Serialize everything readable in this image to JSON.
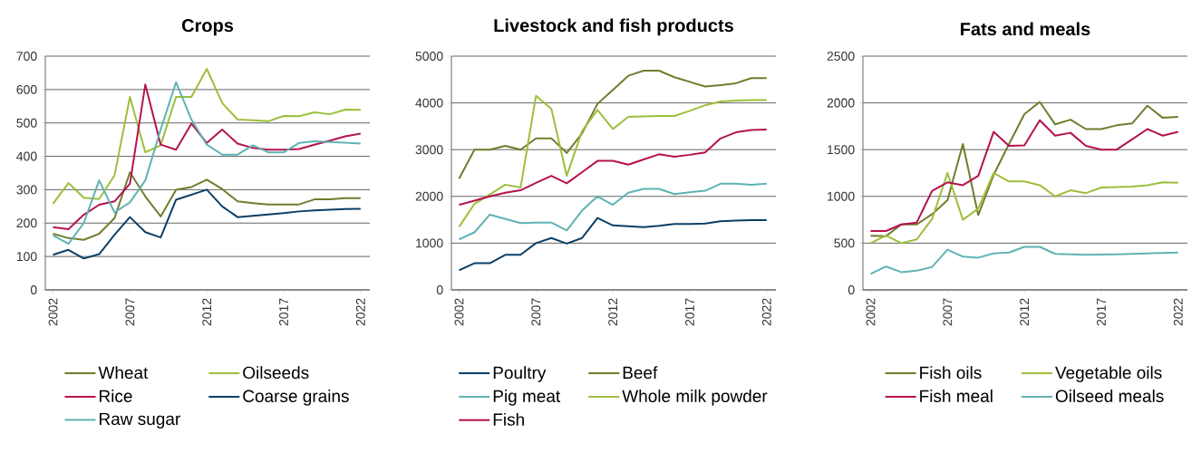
{
  "chart_data": [
    {
      "type": "line",
      "title": "Crops",
      "x": [
        2002,
        2003,
        2004,
        2005,
        2006,
        2007,
        2008,
        2009,
        2010,
        2011,
        2012,
        2013,
        2014,
        2015,
        2016,
        2017,
        2018,
        2019,
        2020,
        2021,
        2022
      ],
      "xlim": [
        2001.5,
        2022.6
      ],
      "xticks": [
        2002,
        2007,
        2012,
        2017,
        2022
      ],
      "ylim": [
        0,
        700
      ],
      "yticks": [
        0,
        100,
        200,
        300,
        400,
        500,
        600,
        700
      ],
      "grid": "y",
      "legend": "bottom",
      "series": [
        {
          "name": "Wheat",
          "color": "#6f7d2c",
          "values": [
            168,
            155,
            150,
            168,
            215,
            352,
            280,
            220,
            300,
            308,
            330,
            302,
            265,
            260,
            256,
            256,
            256,
            271,
            271,
            275,
            275
          ]
        },
        {
          "name": "Oilseeds",
          "color": "#9dbf3a",
          "values": [
            258,
            320,
            276,
            272,
            343,
            578,
            412,
            433,
            578,
            578,
            662,
            560,
            510,
            508,
            505,
            521,
            520,
            532,
            526,
            540,
            539
          ]
        },
        {
          "name": "Rice",
          "color": "#b5124f",
          "values": [
            188,
            182,
            225,
            255,
            265,
            318,
            615,
            435,
            420,
            498,
            440,
            480,
            438,
            425,
            420,
            420,
            422,
            435,
            447,
            460,
            468
          ]
        },
        {
          "name": "Coarse grains",
          "color": "#0b3f66",
          "values": [
            105,
            120,
            94,
            107,
            165,
            218,
            173,
            157,
            270,
            285,
            300,
            250,
            218,
            222,
            226,
            230,
            235,
            238,
            240,
            242,
            243
          ]
        },
        {
          "name": "Raw sugar",
          "color": "#5fb3b3",
          "values": [
            163,
            138,
            200,
            328,
            232,
            262,
            328,
            480,
            622,
            510,
            435,
            405,
            405,
            433,
            412,
            412,
            440,
            445,
            443,
            441,
            438
          ]
        }
      ]
    },
    {
      "type": "line",
      "title": "Livestock and fish products",
      "x": [
        2002,
        2003,
        2004,
        2005,
        2006,
        2007,
        2008,
        2009,
        2010,
        2011,
        2012,
        2013,
        2014,
        2015,
        2016,
        2017,
        2018,
        2019,
        2020,
        2021,
        2022
      ],
      "xlim": [
        2001.5,
        2022.6
      ],
      "xticks": [
        2002,
        2007,
        2012,
        2017,
        2022
      ],
      "ylim": [
        0,
        5000
      ],
      "yticks": [
        0,
        1000,
        2000,
        3000,
        4000,
        5000
      ],
      "grid": "y",
      "legend": "bottom",
      "series": [
        {
          "name": "Poultry",
          "color": "#0b3f66",
          "values": [
            420,
            570,
            570,
            750,
            750,
            1000,
            1110,
            990,
            1110,
            1540,
            1380,
            1360,
            1340,
            1370,
            1410,
            1410,
            1420,
            1470,
            1480,
            1490,
            1490
          ]
        },
        {
          "name": "Beef",
          "color": "#6f7d2c",
          "values": [
            2380,
            3000,
            3000,
            3080,
            3000,
            3240,
            3240,
            2930,
            3350,
            3980,
            4280,
            4580,
            4690,
            4690,
            4550,
            4450,
            4350,
            4380,
            4420,
            4530,
            4530
          ]
        },
        {
          "name": "Pig meat",
          "color": "#5fb3b3",
          "values": [
            1080,
            1230,
            1610,
            1520,
            1430,
            1440,
            1440,
            1270,
            1700,
            2000,
            1820,
            2080,
            2160,
            2160,
            2050,
            2090,
            2120,
            2270,
            2270,
            2250,
            2270
          ]
        },
        {
          "name": "Whole milk powder",
          "color": "#9dbf3a",
          "values": [
            1350,
            1840,
            2040,
            2250,
            2190,
            4150,
            3870,
            2440,
            3400,
            3850,
            3440,
            3700,
            3710,
            3720,
            3720,
            3830,
            3950,
            4030,
            4050,
            4060,
            4060
          ]
        },
        {
          "name": "Fish",
          "color": "#b5124f",
          "values": [
            1820,
            1910,
            2000,
            2080,
            2130,
            2290,
            2440,
            2280,
            2520,
            2760,
            2760,
            2680,
            2790,
            2900,
            2850,
            2890,
            2940,
            3240,
            3370,
            3420,
            3430
          ]
        }
      ]
    },
    {
      "type": "line",
      "title": "Fats and meals",
      "x": [
        2002,
        2003,
        2004,
        2005,
        2006,
        2007,
        2008,
        2009,
        2010,
        2011,
        2012,
        2013,
        2014,
        2015,
        2016,
        2017,
        2018,
        2019,
        2020,
        2021,
        2022
      ],
      "xlim": [
        2001.5,
        2022.6
      ],
      "xticks": [
        2002,
        2007,
        2012,
        2017,
        2022
      ],
      "ylim": [
        0,
        2500
      ],
      "yticks": [
        0,
        500,
        1000,
        1500,
        2000,
        2500
      ],
      "grid": "y",
      "legend": "bottom",
      "series": [
        {
          "name": "Fish oils",
          "color": "#6f7d2c",
          "values": [
            580,
            575,
            700,
            700,
            810,
            960,
            1560,
            800,
            1230,
            1560,
            1880,
            2010,
            1770,
            1820,
            1720,
            1720,
            1760,
            1780,
            1970,
            1840,
            1850
          ]
        },
        {
          "name": "Vegetable oils",
          "color": "#9dbf3a",
          "values": [
            500,
            580,
            500,
            540,
            760,
            1250,
            750,
            870,
            1250,
            1160,
            1160,
            1120,
            1000,
            1065,
            1035,
            1095,
            1100,
            1105,
            1120,
            1150,
            1145
          ]
        },
        {
          "name": "Fish meal",
          "color": "#b5124f",
          "values": [
            630,
            630,
            700,
            720,
            1060,
            1150,
            1120,
            1220,
            1690,
            1540,
            1545,
            1815,
            1650,
            1680,
            1540,
            1500,
            1500,
            1610,
            1720,
            1650,
            1690
          ]
        },
        {
          "name": "Oilseed meals",
          "color": "#5fb3b3",
          "values": [
            170,
            250,
            190,
            205,
            245,
            430,
            355,
            345,
            390,
            400,
            460,
            460,
            385,
            380,
            375,
            378,
            380,
            385,
            390,
            395,
            400
          ]
        }
      ]
    }
  ]
}
